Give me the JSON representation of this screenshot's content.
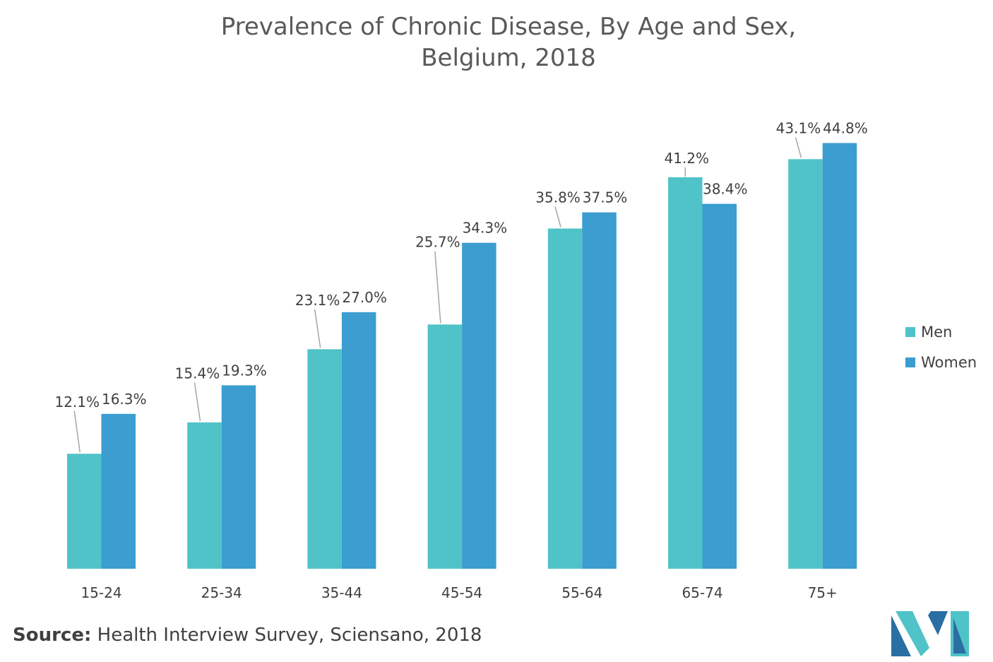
{
  "chart_data": {
    "type": "bar",
    "title_lines": [
      "Prevalence of Chronic Disease, By Age and Sex,",
      "Belgium, 2018"
    ],
    "categories": [
      "15-24",
      "25-34",
      "35-44",
      "45-54",
      "55-64",
      "65-74",
      "75+"
    ],
    "series": [
      {
        "name": "Men",
        "color": "#4fc3c8",
        "values": [
          12.1,
          15.4,
          23.1,
          25.7,
          35.8,
          41.2,
          43.1
        ],
        "labels": [
          "12.1%",
          "15.4%",
          "23.1%",
          "25.7%",
          "35.8%",
          "41.2%",
          "43.1%"
        ]
      },
      {
        "name": "Women",
        "color": "#3b9dd0",
        "values": [
          16.3,
          19.3,
          27.0,
          34.3,
          37.5,
          38.4,
          44.8
        ],
        "labels": [
          "16.3%",
          "19.3%",
          "27.0%",
          "34.3%",
          "37.5%",
          "38.4%",
          "44.8%"
        ]
      }
    ],
    "ylim": [
      0,
      45
    ],
    "legend_position": "right",
    "grid": false
  },
  "source": {
    "label": "Source:",
    "text": "Health Interview Survey, Sciensano, 2018"
  },
  "logo": {
    "icon": "brand-logo-icon",
    "colors": [
      "#2a6fa3",
      "#4fc3c8"
    ]
  }
}
